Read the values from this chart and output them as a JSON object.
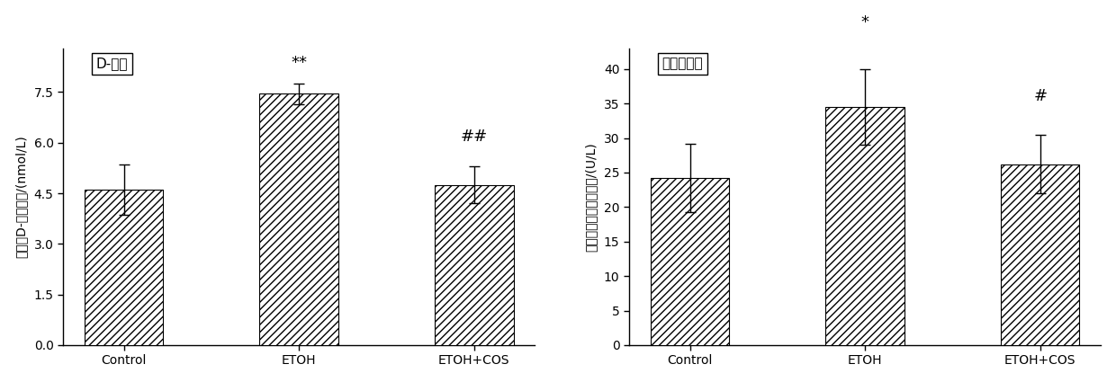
{
  "chart1": {
    "title": "D-乳酸",
    "ylabel": "血浆中D-乳酸含量/(nmol/L)",
    "categories": [
      "Control",
      "ETOH",
      "ETOH+COS"
    ],
    "values": [
      4.6,
      7.45,
      4.75
    ],
    "errors": [
      0.75,
      0.3,
      0.55
    ],
    "ylim": [
      0,
      8.8
    ],
    "yticks": [
      0.0,
      1.5,
      3.0,
      4.5,
      6.0,
      7.5
    ],
    "annotations": [
      "",
      "**",
      "##"
    ],
    "annotation_offsets": [
      0,
      0.38,
      0.65
    ]
  },
  "chart2": {
    "title": "二胺氧化酶",
    "ylabel": "血浆中二胺氧化酶活性/(U/L)",
    "categories": [
      "Control",
      "ETOH",
      "ETOH+COS"
    ],
    "values": [
      24.2,
      34.5,
      26.2
    ],
    "errors": [
      5.0,
      5.5,
      4.2
    ],
    "ylim": [
      0,
      43
    ],
    "yticks": [
      0,
      5,
      10,
      15,
      20,
      25,
      30,
      35,
      40
    ],
    "annotations": [
      "",
      "*",
      "#"
    ],
    "annotation_offsets": [
      0,
      5.5,
      4.5
    ]
  },
  "bar_color": "#ffffff",
  "hatch": "////",
  "edgecolor": "#000000",
  "fontsize_label": 10,
  "fontsize_tick": 10,
  "fontsize_annot": 13,
  "fontsize_title": 11,
  "bar_width": 0.45,
  "figure_facecolor": "#ffffff"
}
